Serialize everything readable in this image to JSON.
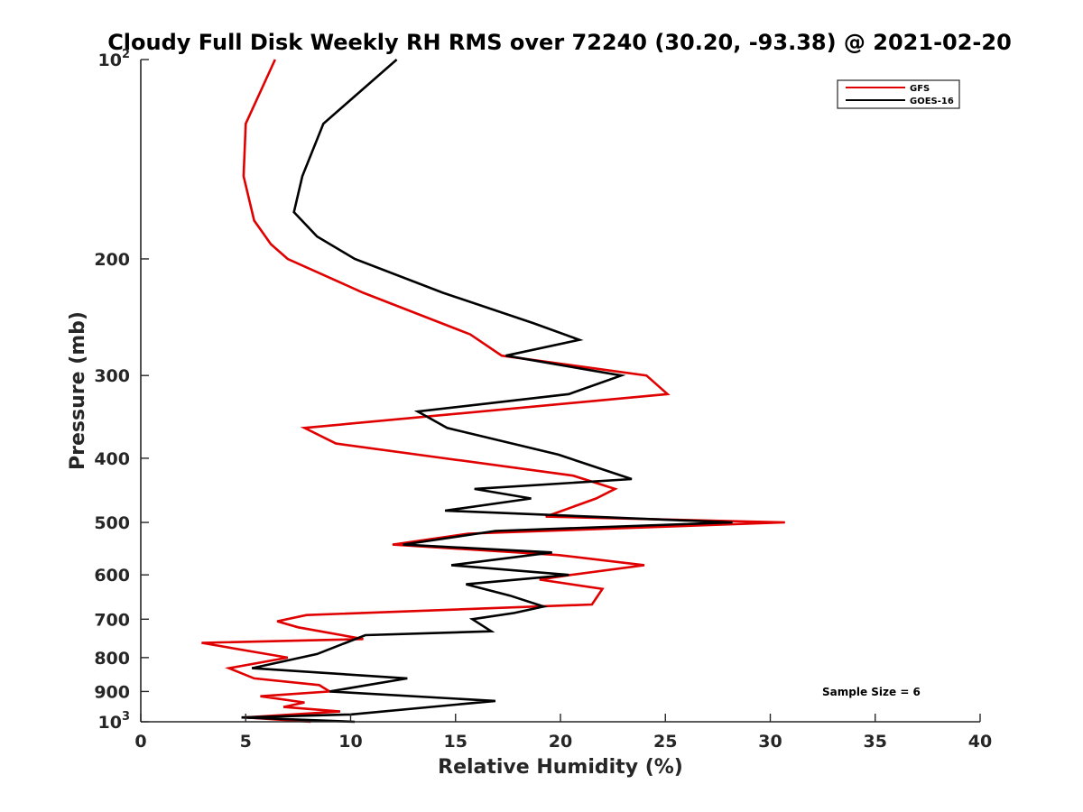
{
  "chart_data": {
    "type": "line",
    "orientation": "profile",
    "title": "Cloudy Full Disk Weekly RH RMS over 72240 (30.20, -93.38) @ 2021-02-20",
    "xlabel": "Relative Humidity (%)",
    "ylabel": "Pressure (mb)",
    "xlim": [
      0,
      40
    ],
    "ylim": [
      100,
      1000
    ],
    "yscale": "log",
    "y_reversed": true,
    "grid": false,
    "x_ticks": [
      0,
      5,
      10,
      15,
      20,
      25,
      30,
      35,
      40
    ],
    "x_tick_labels": [
      "0",
      "5",
      "10",
      "15",
      "20",
      "25",
      "30",
      "35",
      "40"
    ],
    "y_ticks": [
      {
        "value": 100,
        "base": "10",
        "exp": "2",
        "label": ""
      },
      {
        "value": 200,
        "label": "200"
      },
      {
        "value": 300,
        "label": "300"
      },
      {
        "value": 400,
        "label": "400"
      },
      {
        "value": 500,
        "label": "500"
      },
      {
        "value": 600,
        "label": "600"
      },
      {
        "value": 700,
        "label": "700"
      },
      {
        "value": 800,
        "label": "800"
      },
      {
        "value": 900,
        "label": "900"
      },
      {
        "value": 1000,
        "base": "10",
        "exp": "3",
        "label": ""
      }
    ],
    "legend_position": "top-right",
    "annotation": "Sample Size = 6",
    "series": [
      {
        "name": "GFS",
        "color": "#e00000",
        "points": [
          [
            6.4,
            100
          ],
          [
            5.0,
            125
          ],
          [
            4.9,
            150
          ],
          [
            5.4,
            175
          ],
          [
            6.2,
            190
          ],
          [
            7.0,
            200
          ],
          [
            10.6,
            225
          ],
          [
            15.7,
            260
          ],
          [
            17.2,
            280
          ],
          [
            24.1,
            300
          ],
          [
            25.1,
            320
          ],
          [
            7.8,
            360
          ],
          [
            9.3,
            380
          ],
          [
            20.6,
            425
          ],
          [
            22.6,
            445
          ],
          [
            21.7,
            460
          ],
          [
            19.3,
            490
          ],
          [
            30.7,
            500
          ],
          [
            15.6,
            520
          ],
          [
            12.0,
            540
          ],
          [
            19.9,
            560
          ],
          [
            24.0,
            580
          ],
          [
            20.5,
            600
          ],
          [
            19.0,
            610
          ],
          [
            22.0,
            630
          ],
          [
            21.5,
            665
          ],
          [
            7.9,
            690
          ],
          [
            6.5,
            705
          ],
          [
            7.5,
            720
          ],
          [
            10.6,
            750
          ],
          [
            2.9,
            760
          ],
          [
            7.0,
            800
          ],
          [
            4.2,
            830
          ],
          [
            5.4,
            860
          ],
          [
            8.5,
            880
          ],
          [
            9.0,
            900
          ],
          [
            5.7,
            915
          ],
          [
            7.8,
            935
          ],
          [
            6.8,
            950
          ],
          [
            9.5,
            965
          ],
          [
            5.0,
            985
          ],
          [
            8.1,
            1000
          ]
        ]
      },
      {
        "name": "GOES-16",
        "color": "#000000",
        "points": [
          [
            12.2,
            100
          ],
          [
            8.7,
            125
          ],
          [
            7.7,
            150
          ],
          [
            7.3,
            170
          ],
          [
            8.4,
            185
          ],
          [
            10.2,
            200
          ],
          [
            14.4,
            225
          ],
          [
            18.7,
            250
          ],
          [
            20.9,
            265
          ],
          [
            17.4,
            280
          ],
          [
            22.9,
            300
          ],
          [
            20.4,
            320
          ],
          [
            13.2,
            340
          ],
          [
            14.6,
            360
          ],
          [
            19.9,
            395
          ],
          [
            23.4,
            430
          ],
          [
            15.9,
            445
          ],
          [
            18.6,
            460
          ],
          [
            14.5,
            480
          ],
          [
            28.2,
            500
          ],
          [
            16.9,
            515
          ],
          [
            12.5,
            540
          ],
          [
            19.6,
            555
          ],
          [
            14.8,
            580
          ],
          [
            20.4,
            600
          ],
          [
            15.5,
            620
          ],
          [
            17.6,
            645
          ],
          [
            19.2,
            670
          ],
          [
            17.8,
            685
          ],
          [
            15.8,
            700
          ],
          [
            16.7,
            730
          ],
          [
            10.7,
            740
          ],
          [
            8.4,
            790
          ],
          [
            5.3,
            830
          ],
          [
            12.7,
            860
          ],
          [
            9.0,
            900
          ],
          [
            16.9,
            930
          ],
          [
            10.0,
            975
          ],
          [
            4.8,
            985
          ],
          [
            10.2,
            1000
          ]
        ]
      }
    ]
  }
}
